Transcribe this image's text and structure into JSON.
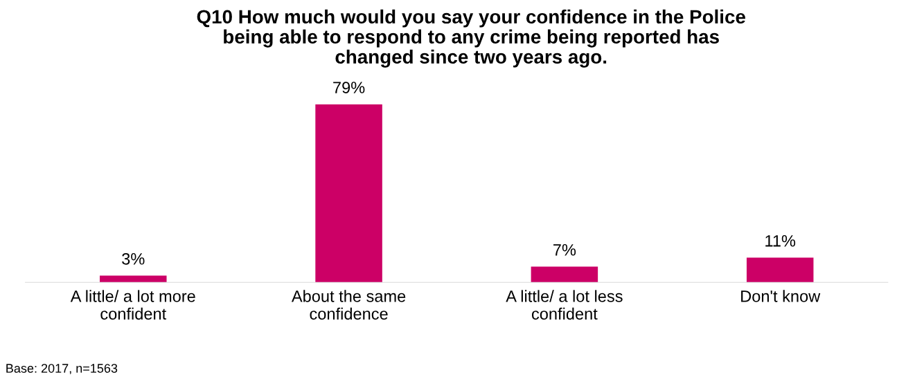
{
  "chart_data": {
    "type": "bar",
    "title": "Q10 How much would you say your confidence in the Police\nbeing able to respond to any crime being reported has\nchanged since two years ago.",
    "categories": [
      "A little/ a lot more\nconfident",
      "About the same\nconfidence",
      "A little/ a lot less\nconfident",
      "Don't know"
    ],
    "values": [
      3,
      79,
      7,
      11
    ],
    "value_labels": [
      "3%",
      "79%",
      "7%",
      "11%"
    ],
    "color": "#cc0066",
    "annotations": [
      "Base: 2017, n=1563"
    ],
    "grid": false,
    "legend": false
  }
}
